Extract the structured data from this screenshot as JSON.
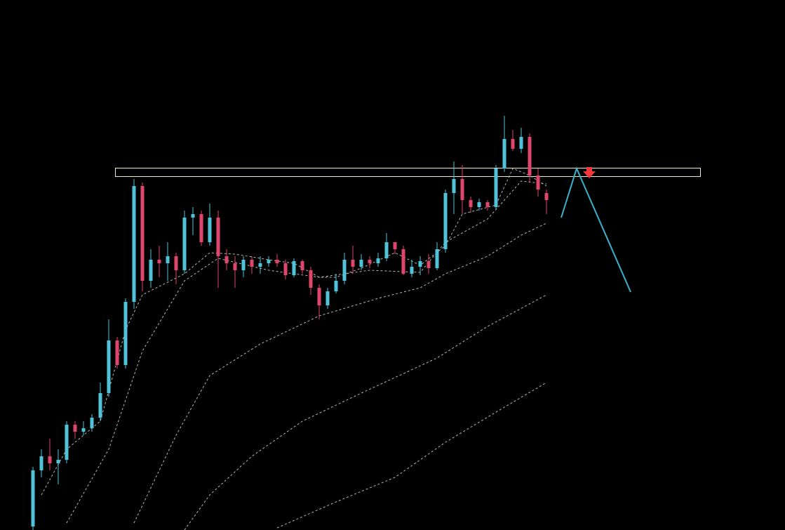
{
  "chart_data": {
    "type": "candlestick",
    "up_color": "#4fc3d9",
    "down_color": "#e0456e",
    "ma_color": "#b8b8b8",
    "ylim": [
      0,
      755
    ],
    "open": [
      5,
      85,
      105,
      95,
      100,
      150,
      140,
      145,
      160,
      195,
      270,
      235,
      325,
      490,
      355,
      385,
      380,
      390,
      370,
      445,
      450,
      410,
      445,
      390,
      380,
      370,
      385,
      375,
      380,
      385,
      380,
      363,
      383,
      370,
      345,
      320,
      340,
      355,
      385,
      375,
      385,
      380,
      387,
      410,
      400,
      365,
      375,
      383,
      373,
      400,
      480,
      500,
      470,
      460,
      467,
      460,
      515,
      557,
      543,
      560,
      505,
      480
    ],
    "high": [
      90,
      115,
      130,
      115,
      155,
      155,
      155,
      165,
      210,
      300,
      275,
      330,
      500,
      495,
      400,
      405,
      410,
      395,
      455,
      460,
      455,
      465,
      455,
      400,
      390,
      390,
      390,
      390,
      390,
      393,
      385,
      387,
      385,
      375,
      350,
      345,
      365,
      395,
      405,
      393,
      390,
      395,
      423,
      410,
      405,
      385,
      390,
      393,
      410,
      485,
      525,
      520,
      475,
      472,
      470,
      520,
      590,
      570,
      573,
      565,
      515,
      485
    ],
    "low": [
      0,
      75,
      85,
      65,
      95,
      130,
      135,
      140,
      155,
      190,
      230,
      230,
      315,
      340,
      345,
      360,
      355,
      350,
      365,
      420,
      405,
      405,
      345,
      370,
      345,
      360,
      365,
      365,
      375,
      375,
      357,
      360,
      365,
      335,
      300,
      315,
      337,
      350,
      365,
      370,
      373,
      375,
      383,
      393,
      363,
      360,
      363,
      365,
      370,
      395,
      450,
      450,
      452,
      455,
      455,
      457,
      510,
      540,
      537,
      495,
      475,
      450
    ],
    "close": [
      85,
      105,
      95,
      100,
      150,
      140,
      145,
      160,
      195,
      270,
      235,
      325,
      490,
      355,
      385,
      380,
      390,
      370,
      445,
      450,
      410,
      445,
      390,
      380,
      370,
      385,
      375,
      380,
      385,
      380,
      363,
      383,
      370,
      345,
      320,
      340,
      355,
      385,
      375,
      385,
      380,
      387,
      410,
      400,
      365,
      375,
      383,
      373,
      400,
      480,
      500,
      470,
      460,
      467,
      460,
      515,
      557,
      543,
      560,
      505,
      485,
      470
    ],
    "moving_averages": [
      {
        "x": [
          1,
          4,
          8,
          11,
          13,
          18,
          21,
          24,
          28,
          31,
          34,
          36,
          39,
          43,
          46,
          49,
          51,
          55,
          57,
          59,
          61
        ],
        "values": [
          50,
          115,
          155,
          285,
          335,
          365,
          395,
          393,
          385,
          380,
          360,
          360,
          373,
          395,
          377,
          405,
          450,
          463,
          515,
          505,
          490
        ]
      },
      {
        "x": [
          4,
          9,
          13,
          18,
          22,
          28,
          34,
          40,
          46,
          49,
          54,
          58,
          61
        ],
        "values": [
          10,
          115,
          255,
          355,
          387,
          370,
          360,
          370,
          367,
          410,
          443,
          497,
          493
        ]
      },
      {
        "x": [
          12,
          17,
          21,
          27,
          34,
          41,
          46,
          49,
          54,
          58,
          61
        ],
        "values": [
          10,
          135,
          220,
          265,
          305,
          330,
          345,
          365,
          390,
          420,
          437
        ]
      },
      {
        "x": [
          18,
          21,
          26,
          32,
          39,
          48,
          54,
          61
        ],
        "values": [
          0,
          50,
          105,
          155,
          195,
          245,
          290,
          335
        ]
      },
      {
        "x": [
          29,
          36,
          43,
          49,
          56,
          61
        ],
        "values": [
          3,
          40,
          75,
          125,
          175,
          210
        ]
      }
    ]
  }
}
